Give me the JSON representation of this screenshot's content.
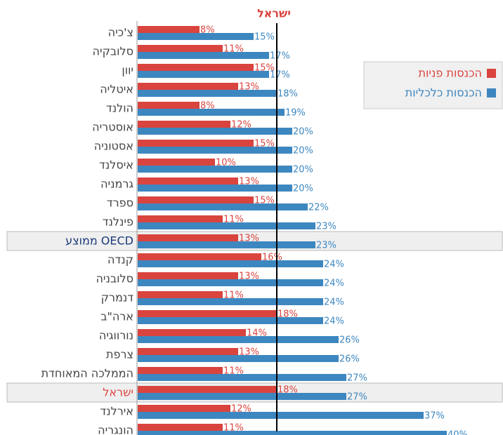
{
  "chart_data": {
    "type": "bar",
    "orientation": "horizontal",
    "categories": [
      "צ'כיה",
      "סלובקיה",
      "יוון",
      "איטליה",
      "הולנד",
      "אוסטריה",
      "אסטוניה",
      "איסלנד",
      "גרמניה",
      "ספרד",
      "פינלנד",
      "ממוצע OECD",
      "קנדה",
      "סלובניה",
      "דנמרק",
      "ארה\"ב",
      "נורווגיה",
      "צרפת",
      "הממלכה המאוחדת",
      "ישראל",
      "אירלנד",
      "הונגריה"
    ],
    "series": [
      {
        "name": "הכנסות פניות",
        "color": "#d9443f",
        "values": [
          8,
          11,
          15,
          13,
          8,
          12,
          15,
          10,
          13,
          15,
          11,
          13,
          16,
          13,
          11,
          18,
          14,
          13,
          11,
          18,
          12,
          11
        ],
        "value_labels": [
          "8%",
          "11%",
          "15%",
          "13%",
          "8%",
          "12%",
          "15%",
          "10%",
          "13%",
          "15%",
          "11%",
          "13%",
          "16%",
          "13%",
          "11%",
          "18%",
          "14%",
          "13%",
          "11%",
          "18%",
          "12%",
          "11%"
        ]
      },
      {
        "name": "הכנסות כלכליות",
        "color": "#3d87c0",
        "values": [
          15,
          17,
          17,
          18,
          19,
          20,
          20,
          20,
          20,
          22,
          23,
          23,
          24,
          24,
          24,
          24,
          26,
          26,
          27,
          27,
          37,
          40
        ],
        "value_labels": [
          "15%",
          "17%",
          "17%",
          "18%",
          "19%",
          "20%",
          "20%",
          "20%",
          "20%",
          "22%",
          "23%",
          "23%",
          "24%",
          "24%",
          "24%",
          "24%",
          "26%",
          "26%",
          "27%",
          "27%",
          "37%",
          "40%"
        ]
      }
    ],
    "xlim": [
      0,
      40
    ],
    "reference_line": {
      "label": "ישראל",
      "value": 18,
      "color": "#d9443f"
    },
    "highlights": [
      {
        "index": 11,
        "color": "#1a3a7a"
      },
      {
        "index": 19,
        "color": "#d9443f"
      }
    ],
    "legend": "right"
  }
}
